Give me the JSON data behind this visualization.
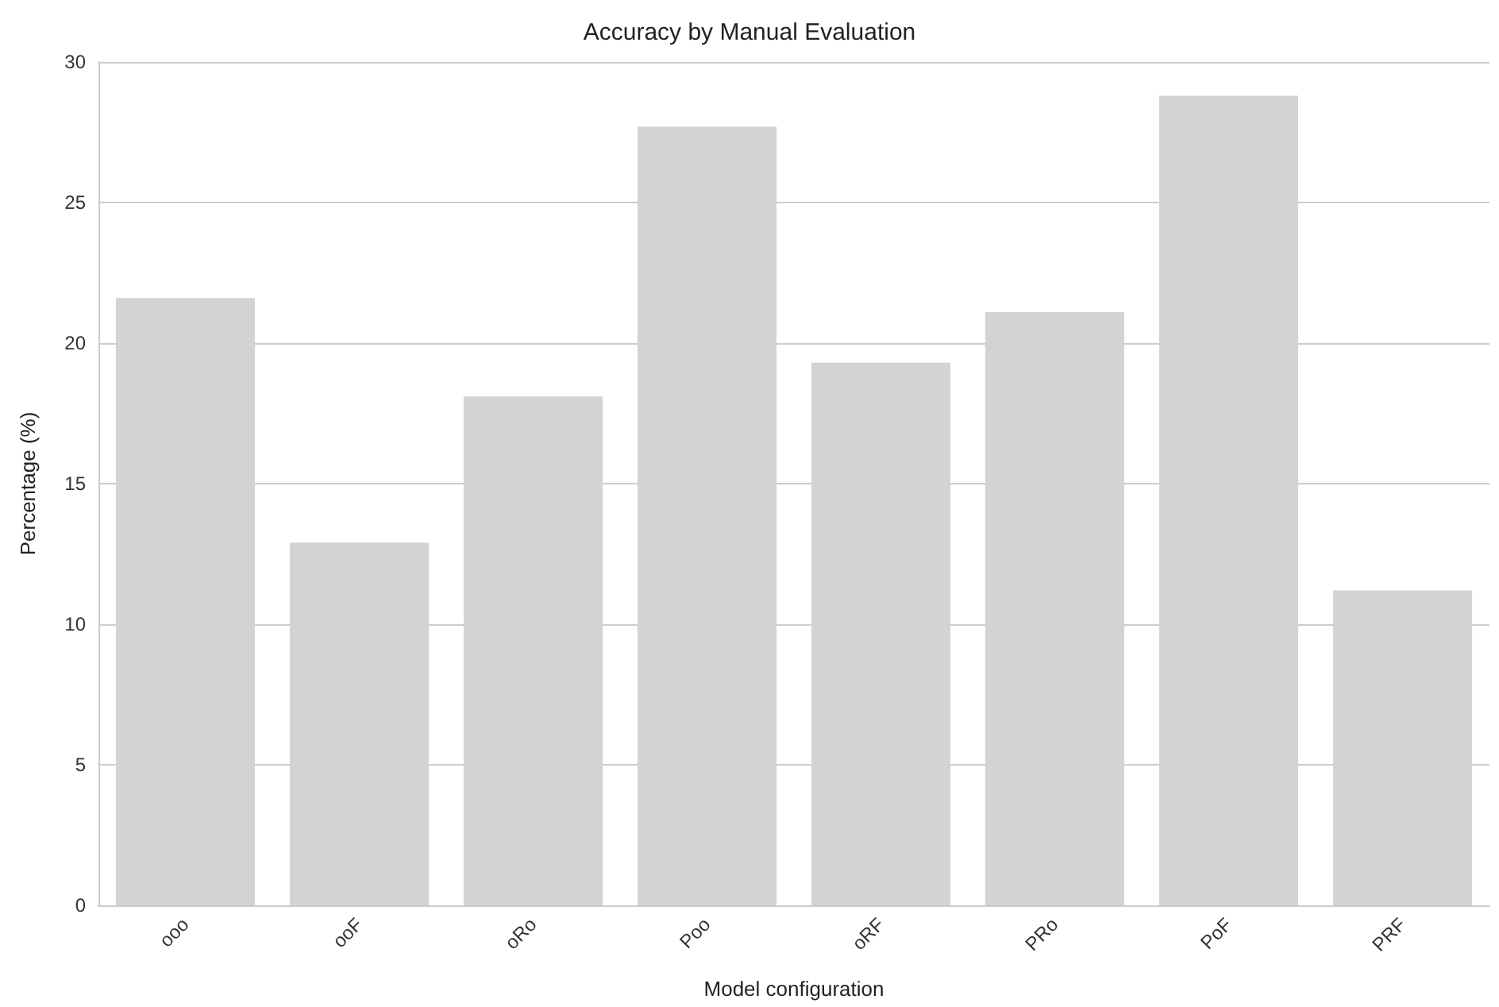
{
  "chart_data": {
    "type": "bar",
    "title": "Accuracy by Manual Evaluation",
    "xlabel": "Model configuration",
    "ylabel": "Percentage (%)",
    "categories": [
      "ooo",
      "ooF",
      "oRo",
      "Poo",
      "oRF",
      "PRo",
      "PoF",
      "PRF"
    ],
    "values": [
      21.6,
      12.9,
      18.1,
      27.7,
      19.3,
      21.1,
      28.8,
      11.2
    ],
    "color": "#d3d3d3",
    "ylim": [
      0,
      30
    ],
    "yticks": [
      0,
      5,
      10,
      15,
      20,
      25,
      30
    ],
    "grid": "y"
  }
}
